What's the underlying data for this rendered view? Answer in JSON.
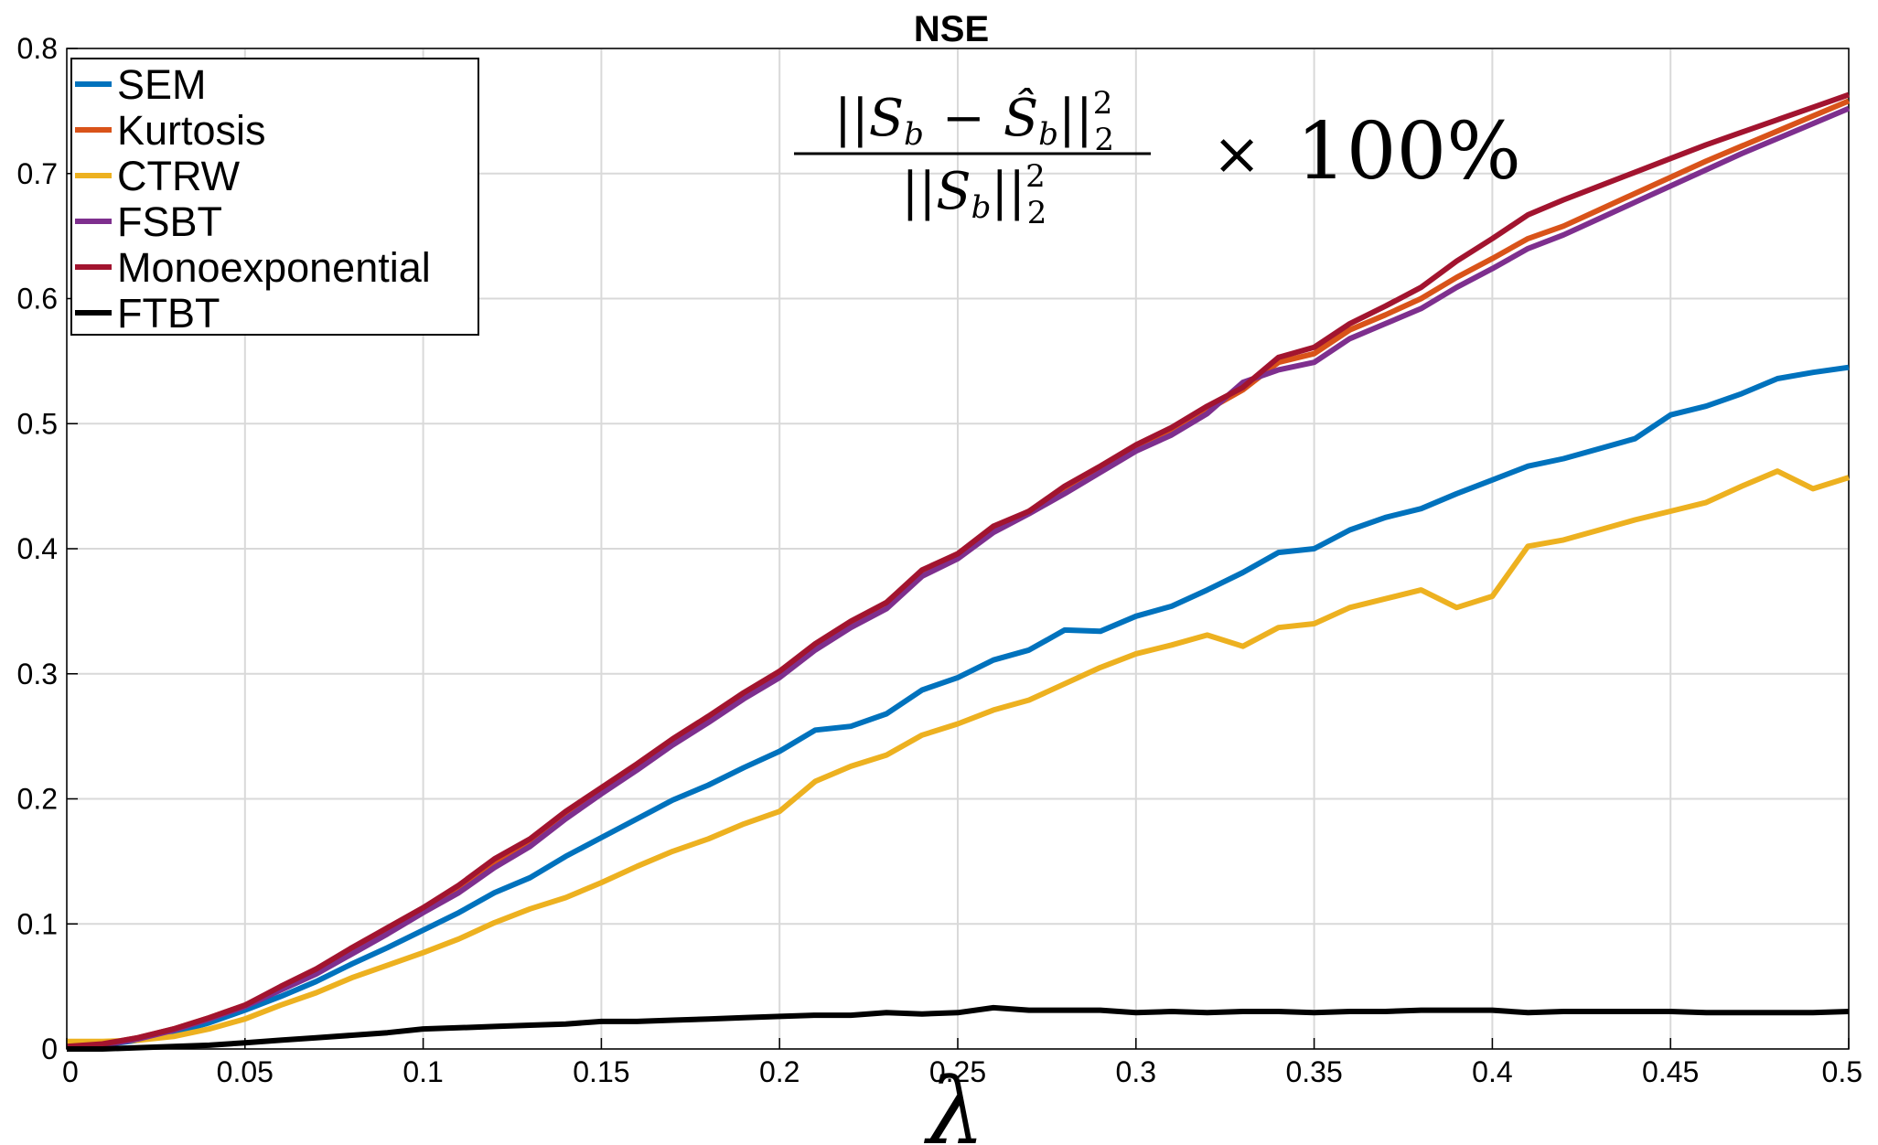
{
  "chart_data": {
    "type": "line",
    "title": "NSE",
    "xlabel": "λ",
    "ylabel": "",
    "xlim": [
      0,
      0.5
    ],
    "ylim": [
      0,
      0.8
    ],
    "grid": true,
    "legend_position": "top-left",
    "x_ticks": [
      "0",
      "0.05",
      "0.1",
      "0.15",
      "0.2",
      "0.25",
      "0.3",
      "0.35",
      "0.4",
      "0.45",
      "0.5"
    ],
    "y_ticks": [
      "0",
      "0.1",
      "0.2",
      "0.3",
      "0.4",
      "0.5",
      "0.6",
      "0.7",
      "0.8"
    ],
    "annotation": {
      "numerator_left": "||S",
      "numerator_sub1": "b",
      "minus": "−",
      "numerator_hat": "Ŝ",
      "numerator_sub2": "b",
      "numerator_right": "||",
      "numerator_sup": "2",
      "numerator_low": "2",
      "denominator_left": "||S",
      "denominator_sub": "b",
      "denominator_right": "||",
      "denominator_sup": "2",
      "denominator_low": "2",
      "times": "×",
      "percent": "100%"
    },
    "x": [
      0,
      0.01,
      0.02,
      0.03,
      0.04,
      0.05,
      0.06,
      0.07,
      0.08,
      0.09,
      0.1,
      0.11,
      0.12,
      0.13,
      0.14,
      0.15,
      0.16,
      0.17,
      0.18,
      0.19,
      0.2,
      0.21,
      0.22,
      0.23,
      0.24,
      0.25,
      0.26,
      0.27,
      0.28,
      0.29,
      0.3,
      0.31,
      0.32,
      0.33,
      0.34,
      0.35,
      0.36,
      0.37,
      0.38,
      0.39,
      0.4,
      0.41,
      0.42,
      0.43,
      0.44,
      0.45,
      0.46,
      0.47,
      0.48,
      0.49,
      0.5
    ],
    "series": [
      {
        "name": "SEM",
        "color": "#0072BD",
        "values": [
          0.002,
          0.003,
          0.007,
          0.013,
          0.021,
          0.031,
          0.042,
          0.054,
          0.068,
          0.081,
          0.095,
          0.109,
          0.125,
          0.137,
          0.154,
          0.169,
          0.184,
          0.199,
          0.211,
          0.225,
          0.238,
          0.255,
          0.258,
          0.268,
          0.287,
          0.297,
          0.311,
          0.319,
          0.335,
          0.334,
          0.346,
          0.354,
          0.367,
          0.381,
          0.397,
          0.4,
          0.415,
          0.425,
          0.432,
          0.444,
          0.455,
          0.466,
          0.472,
          0.48,
          0.488,
          0.507,
          0.514,
          0.524,
          0.536,
          0.541,
          0.545
        ]
      },
      {
        "name": "Kurtosis",
        "color": "#D95319",
        "values": [
          0.002,
          0.004,
          0.009,
          0.016,
          0.025,
          0.035,
          0.049,
          0.063,
          0.079,
          0.095,
          0.112,
          0.129,
          0.149,
          0.166,
          0.188,
          0.208,
          0.227,
          0.247,
          0.265,
          0.284,
          0.302,
          0.323,
          0.341,
          0.357,
          0.382,
          0.396,
          0.416,
          0.43,
          0.448,
          0.465,
          0.481,
          0.495,
          0.511,
          0.527,
          0.549,
          0.556,
          0.575,
          0.587,
          0.6,
          0.617,
          0.632,
          0.648,
          0.658,
          0.671,
          0.684,
          0.697,
          0.71,
          0.722,
          0.734,
          0.746,
          0.758
        ]
      },
      {
        "name": "CTRW",
        "color": "#EDB120",
        "values": [
          0.006,
          0.006,
          0.007,
          0.01,
          0.016,
          0.024,
          0.035,
          0.045,
          0.057,
          0.067,
          0.077,
          0.088,
          0.101,
          0.112,
          0.121,
          0.133,
          0.146,
          0.158,
          0.168,
          0.18,
          0.19,
          0.214,
          0.226,
          0.235,
          0.251,
          0.26,
          0.271,
          0.279,
          0.292,
          0.305,
          0.316,
          0.323,
          0.331,
          0.322,
          0.337,
          0.34,
          0.353,
          0.36,
          0.367,
          0.353,
          0.362,
          0.402,
          0.407,
          0.415,
          0.423,
          0.43,
          0.437,
          0.45,
          0.462,
          0.448,
          0.457
        ]
      },
      {
        "name": "FSBT",
        "color": "#7E2F8E",
        "values": [
          0.002,
          0.003,
          0.008,
          0.015,
          0.024,
          0.034,
          0.047,
          0.06,
          0.076,
          0.092,
          0.109,
          0.125,
          0.145,
          0.162,
          0.184,
          0.204,
          0.223,
          0.243,
          0.261,
          0.28,
          0.297,
          0.319,
          0.337,
          0.352,
          0.378,
          0.392,
          0.413,
          0.428,
          0.444,
          0.461,
          0.478,
          0.491,
          0.508,
          0.533,
          0.543,
          0.549,
          0.568,
          0.58,
          0.592,
          0.609,
          0.624,
          0.64,
          0.651,
          0.664,
          0.677,
          0.69,
          0.703,
          0.716,
          0.728,
          0.74,
          0.752
        ]
      },
      {
        "name": "Monoexponential",
        "color": "#A2142F",
        "values": [
          0.002,
          0.004,
          0.009,
          0.016,
          0.025,
          0.035,
          0.05,
          0.064,
          0.081,
          0.097,
          0.113,
          0.131,
          0.152,
          0.168,
          0.19,
          0.209,
          0.228,
          0.248,
          0.266,
          0.285,
          0.302,
          0.324,
          0.342,
          0.357,
          0.383,
          0.396,
          0.418,
          0.43,
          0.45,
          0.466,
          0.483,
          0.497,
          0.514,
          0.529,
          0.553,
          0.561,
          0.58,
          0.594,
          0.609,
          0.63,
          0.648,
          0.667,
          0.679,
          0.69,
          0.701,
          0.712,
          0.723,
          0.733,
          0.743,
          0.753,
          0.763
        ]
      },
      {
        "name": "FTBT",
        "color": "#000000",
        "values": [
          0.0,
          0.0,
          0.001,
          0.002,
          0.003,
          0.005,
          0.007,
          0.009,
          0.011,
          0.013,
          0.016,
          0.017,
          0.018,
          0.019,
          0.02,
          0.022,
          0.022,
          0.023,
          0.024,
          0.025,
          0.026,
          0.027,
          0.027,
          0.029,
          0.028,
          0.029,
          0.033,
          0.031,
          0.031,
          0.031,
          0.029,
          0.03,
          0.029,
          0.03,
          0.03,
          0.029,
          0.03,
          0.03,
          0.031,
          0.031,
          0.031,
          0.029,
          0.03,
          0.03,
          0.03,
          0.03,
          0.029,
          0.029,
          0.029,
          0.029,
          0.03
        ]
      }
    ]
  }
}
